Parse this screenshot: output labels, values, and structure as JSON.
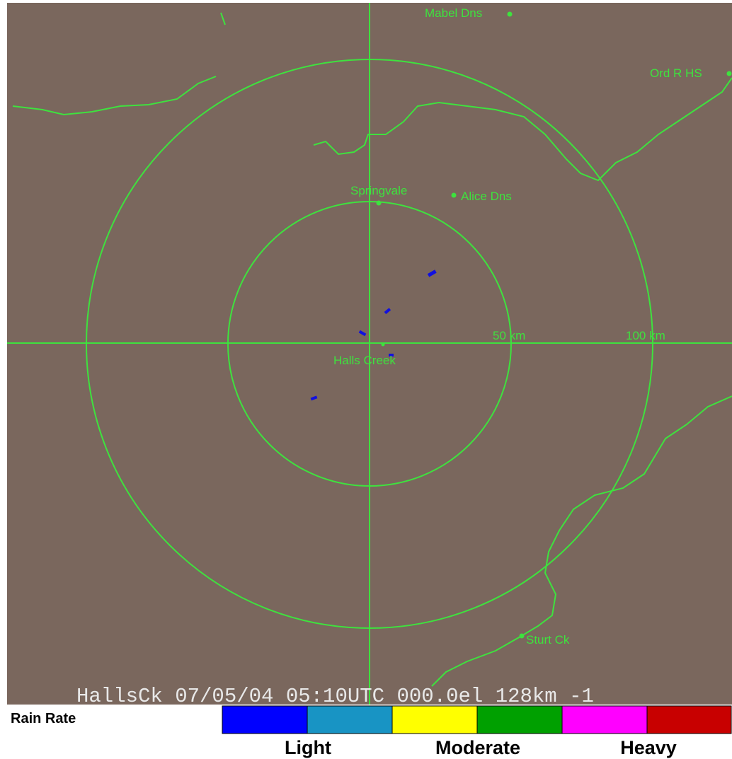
{
  "map": {
    "places": [
      "Mabel Dns",
      "Ord R HS",
      "Springvale",
      "Alice Dns",
      "Halls Creek",
      "Sturt Ck"
    ],
    "range_rings": [
      "50 km",
      "100 km"
    ],
    "status_line": "HallsCk 07/05/04 05:10UTC 000.0el 128km -1"
  },
  "legend": {
    "title": "Rain Rate",
    "levels": [
      "Light",
      "Moderate",
      "Heavy"
    ]
  }
}
